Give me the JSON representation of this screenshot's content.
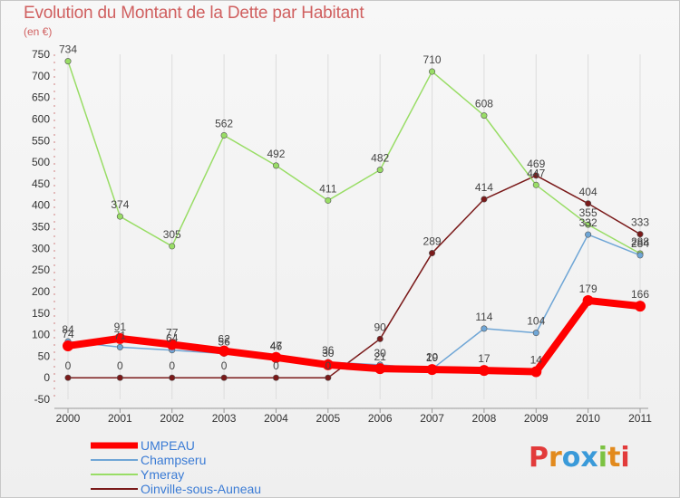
{
  "title": "Evolution du Montant de la Dette par Habitant",
  "subtitle": "(en €)",
  "logo": {
    "text": "Proxiti",
    "letters": [
      "P",
      "r",
      "o",
      "x",
      "i",
      "t",
      "i"
    ],
    "colors": [
      "#e23b3b",
      "#e28a1d",
      "#3a9ad9",
      "#3a9ad9",
      "#7cc242",
      "#e28a1d",
      "#e23b3b"
    ]
  },
  "chart_data": {
    "type": "line",
    "x": [
      "2000",
      "2001",
      "2002",
      "2003",
      "2004",
      "2005",
      "2006",
      "2007",
      "2008",
      "2009",
      "2010",
      "2011"
    ],
    "ylim": [
      -50,
      750
    ],
    "yticks": [
      -50,
      0,
      50,
      100,
      150,
      200,
      250,
      300,
      350,
      400,
      450,
      500,
      550,
      600,
      650,
      700,
      750
    ],
    "grid": "vertical",
    "legend_position": "bottom-left",
    "series": [
      {
        "name": "Oinville-sous-Auneau",
        "color": "#7a1a1a",
        "width": 1.5,
        "values": [
          0,
          0,
          0,
          0,
          0,
          0,
          90,
          289,
          414,
          469,
          404,
          333
        ]
      },
      {
        "name": "Ymeray",
        "color": "#99dd66",
        "width": 1.5,
        "values": [
          734,
          374,
          305,
          562,
          492,
          411,
          482,
          710,
          608,
          447,
          355,
          288
        ]
      },
      {
        "name": "Champseru",
        "color": "#6fa6d6",
        "width": 1.5,
        "values": [
          84,
          71,
          64,
          56,
          46,
          36,
          30,
          20,
          114,
          104,
          332,
          284
        ]
      },
      {
        "name": "UMPEAU",
        "color": "#ff0000",
        "width": 8,
        "values": [
          74,
          91,
          77,
          62,
          47,
          30,
          21,
          19,
          17,
          14,
          179,
          166
        ]
      }
    ],
    "legend_order": [
      "UMPEAU",
      "Champseru",
      "Ymeray",
      "Oinville-sous-Auneau"
    ]
  }
}
